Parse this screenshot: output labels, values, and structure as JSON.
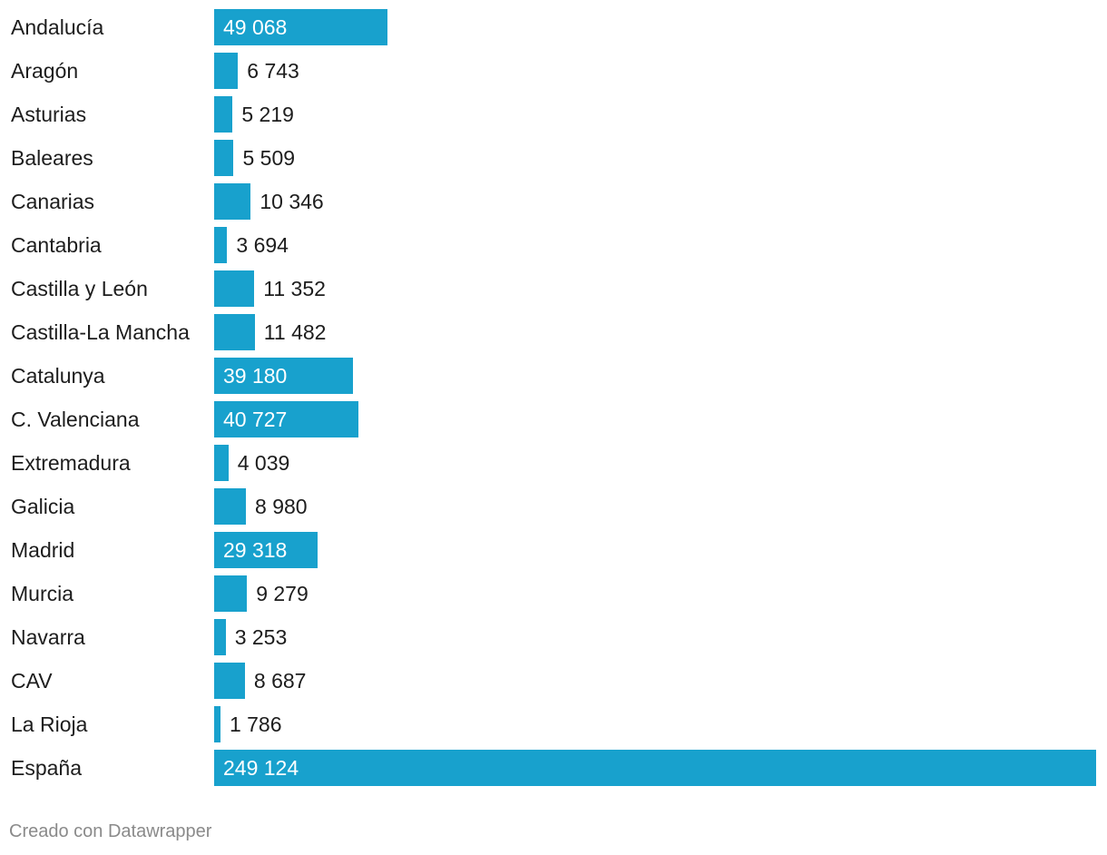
{
  "chart_data": {
    "type": "bar",
    "orientation": "horizontal",
    "categories": [
      "Andalucía",
      "Aragón",
      "Asturias",
      "Baleares",
      "Canarias",
      "Cantabria",
      "Castilla y León",
      "Castilla-La Mancha",
      "Catalunya",
      "C. Valenciana",
      "Extremadura",
      "Galicia",
      "Madrid",
      "Murcia",
      "Navarra",
      "CAV",
      "La Rioja",
      "España"
    ],
    "values": [
      49068,
      6743,
      5219,
      5509,
      10346,
      3694,
      11352,
      11482,
      39180,
      40727,
      4039,
      8980,
      29318,
      9279,
      3253,
      8687,
      1786,
      249124
    ],
    "value_labels": [
      "49 068",
      "6 743",
      "5 219",
      "5 509",
      "10 346",
      "3 694",
      "11 352",
      "11 482",
      "39 180",
      "40 727",
      "4 039",
      "8 980",
      "29 318",
      "9 279",
      "3 253",
      "8 687",
      "1 786",
      "249 124"
    ],
    "xlim": [
      0,
      249124
    ],
    "grid": false,
    "legend": "none",
    "bar_color": "#18a1cd"
  },
  "footer": {
    "credit": "Creado con Datawrapper"
  }
}
